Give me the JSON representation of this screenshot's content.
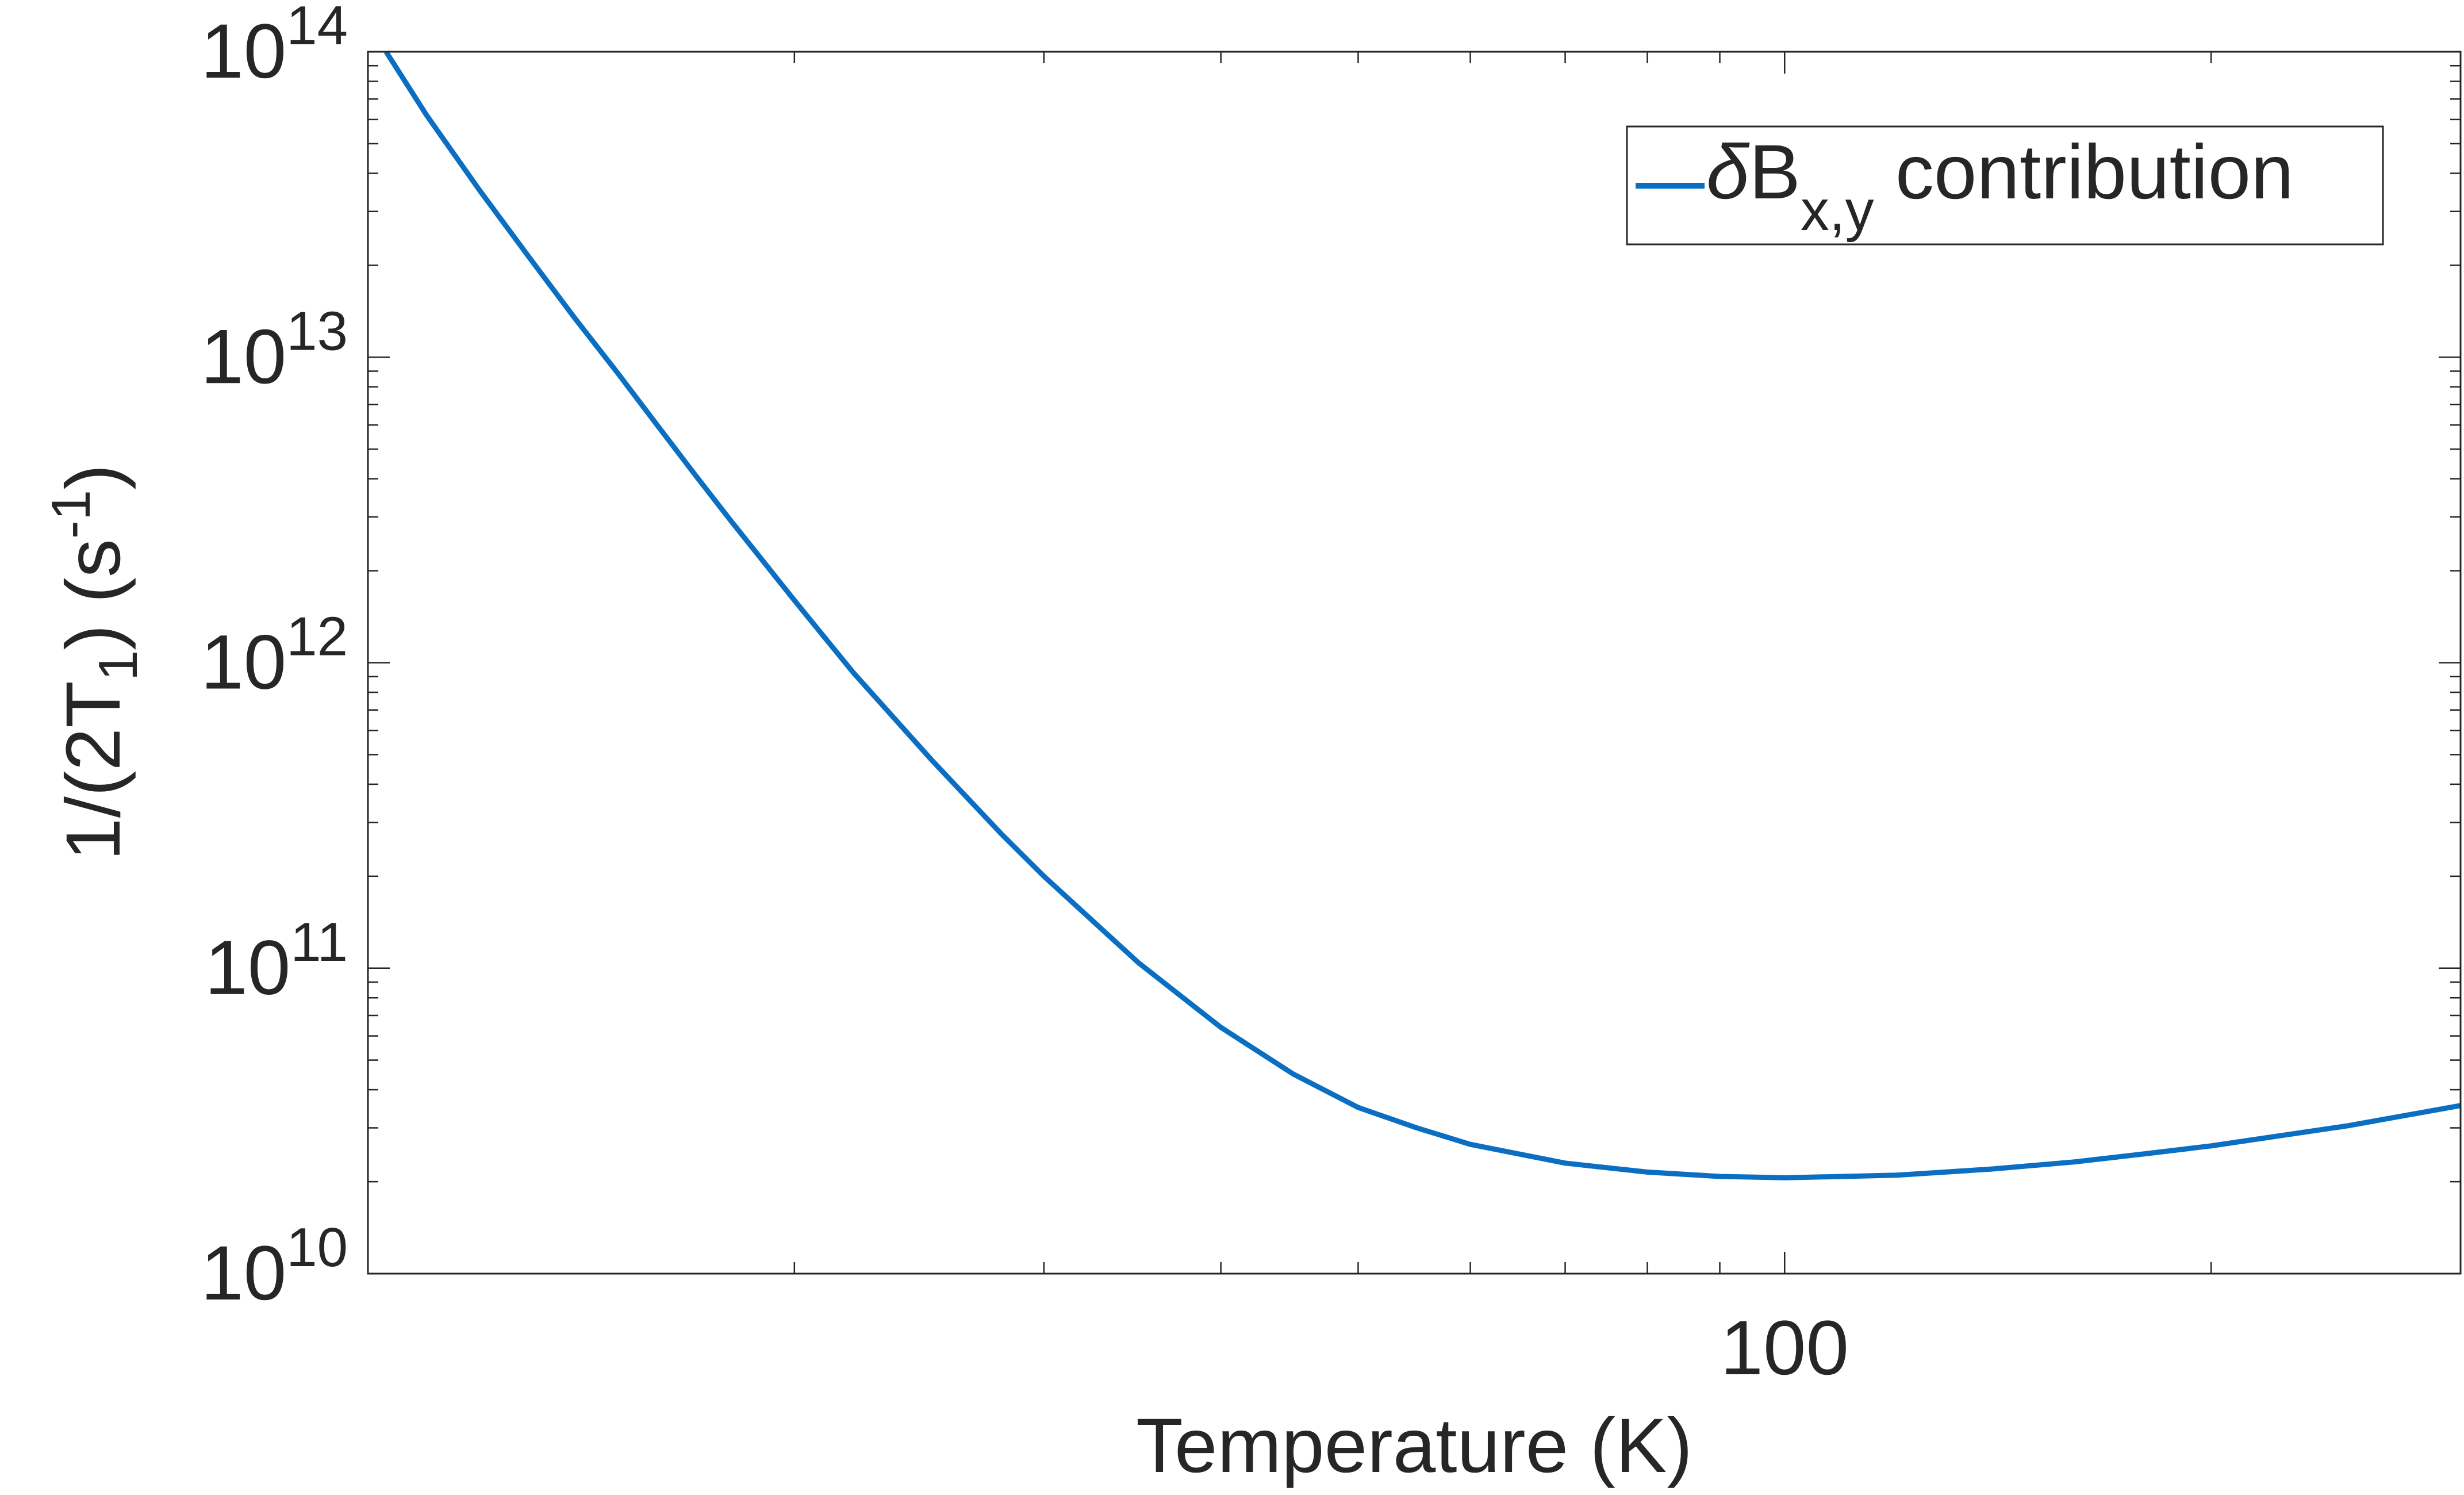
{
  "chart_data": {
    "type": "line",
    "title": "",
    "xlabel": "Temperature (K)",
    "ylabel_parts": {
      "main": "1/(2T",
      "sub": "1",
      "mid": ") (s",
      "sup": "-1",
      "end": ")"
    },
    "x_scale": "log",
    "y_scale": "log",
    "xlim": [
      10,
      300
    ],
    "ylim": [
      10000000000.0,
      100000000000000.0
    ],
    "x_ticks": [
      {
        "value": 100,
        "label": "100"
      }
    ],
    "y_ticks": [
      {
        "value": 10000000000.0,
        "base": "10",
        "exp": "10"
      },
      {
        "value": 100000000000.0,
        "base": "10",
        "exp": "11"
      },
      {
        "value": 1000000000000.0,
        "base": "10",
        "exp": "12"
      },
      {
        "value": 10000000000000.0,
        "base": "10",
        "exp": "13"
      },
      {
        "value": 100000000000000.0,
        "base": "10",
        "exp": "14"
      }
    ],
    "grid": false,
    "box": true,
    "legend": {
      "position": "top-right",
      "symbol": "δ",
      "main": "B",
      "sub": "x,y",
      "rest": " contribution"
    },
    "series": [
      {
        "name": "δB_x,y contribution",
        "color": "#0a6fc2",
        "x": [
          10.3,
          11,
          12,
          13,
          14,
          15,
          16,
          17,
          18,
          20,
          22,
          25,
          28,
          30,
          35,
          40,
          45,
          50,
          55,
          60,
          70,
          80,
          90,
          100,
          110,
          120,
          140,
          160,
          180,
          200,
          250,
          300
        ],
        "y": [
          100000000000000.0,
          62000000000000.0,
          35000000000000.0,
          21200000000000.0,
          13400000000000.0,
          8900000000000.0,
          6000000000000.0,
          4150000000000.0,
          2950000000000.0,
          1600000000000.0,
          930000000000.0,
          480000000000.0,
          275000000000.0,
          200000000000.0,
          104000000000.0,
          64000000000.0,
          45000000000.0,
          35000000000.0,
          30000000000.0,
          26500000000.0,
          23000000000.0,
          21500000000.0,
          20800000000.0,
          20600000000.0,
          20800000000.0,
          21000000000.0,
          22000000000.0,
          23200000000.0,
          24700000000.0,
          26200000000.0,
          30500000000.0,
          35500000000.0
        ]
      }
    ]
  }
}
